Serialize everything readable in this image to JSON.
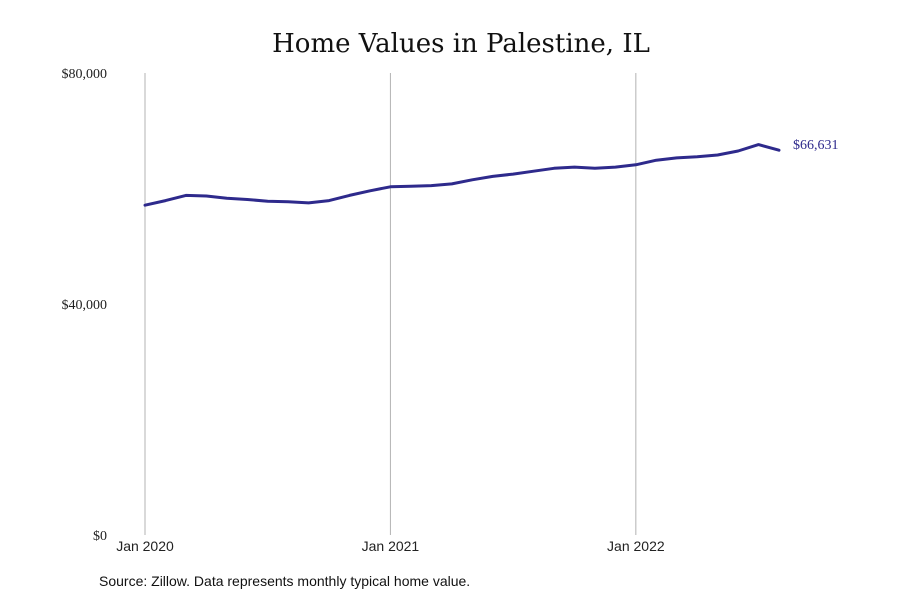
{
  "chart_data": {
    "type": "line",
    "title": "Home Values in Palestine, IL",
    "xlabel": "",
    "ylabel": "",
    "ylim": [
      0,
      80000
    ],
    "xlim": [
      "2020-01",
      "2022-08"
    ],
    "y_ticks": [
      {
        "value": 0,
        "label": "$0"
      },
      {
        "value": 40000,
        "label": "$40,000"
      },
      {
        "value": 80000,
        "label": "$80,000"
      }
    ],
    "x_ticks": [
      {
        "value": "2020-01",
        "label": "Jan 2020"
      },
      {
        "value": "2021-01",
        "label": "Jan 2021"
      },
      {
        "value": "2022-01",
        "label": "Jan 2022"
      }
    ],
    "grid": "vertical",
    "x": [
      "2020-01",
      "2020-02",
      "2020-03",
      "2020-04",
      "2020-05",
      "2020-06",
      "2020-07",
      "2020-08",
      "2020-09",
      "2020-10",
      "2020-11",
      "2020-12",
      "2021-01",
      "2021-02",
      "2021-03",
      "2021-04",
      "2021-05",
      "2021-06",
      "2021-07",
      "2021-08",
      "2021-09",
      "2021-10",
      "2021-11",
      "2021-12",
      "2022-01",
      "2022-02",
      "2022-03",
      "2022-04",
      "2022-05",
      "2022-06",
      "2022-07",
      "2022-08"
    ],
    "series": [
      {
        "name": "",
        "color": "#2e2a8c",
        "values": [
          57100,
          57900,
          58800,
          58700,
          58300,
          58100,
          57800,
          57700,
          57500,
          57900,
          58800,
          59600,
          60300,
          60400,
          60500,
          60800,
          61500,
          62100,
          62500,
          63000,
          63500,
          63700,
          63500,
          63700,
          64100,
          64900,
          65300,
          65500,
          65800,
          66500,
          67600,
          66631
        ]
      }
    ],
    "end_label": "$66,631",
    "source": "Source: Zillow. Data represents monthly typical home value."
  }
}
